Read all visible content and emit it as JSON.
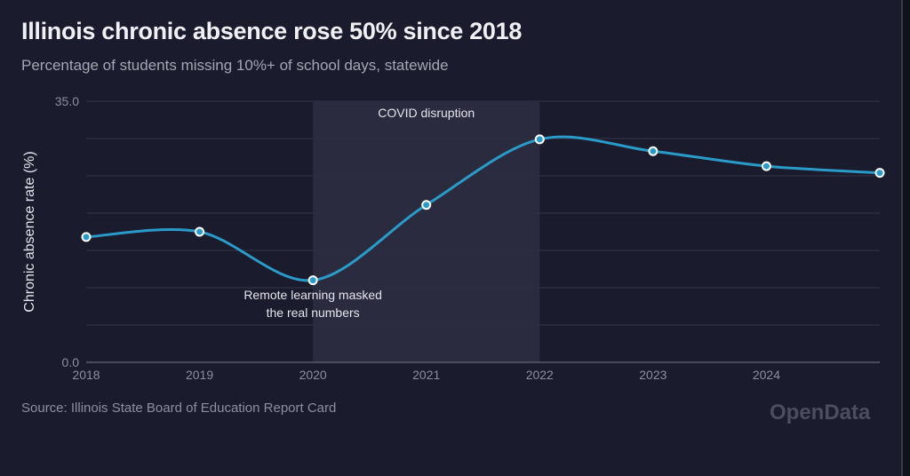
{
  "header": {
    "title": "Illinois chronic absence rose 50% since 2018",
    "subtitle": "Percentage of students missing 10%+ of school days, statewide"
  },
  "footer": {
    "source": "Source: Illinois State Board of Education Report Card",
    "brand": "OpenData"
  },
  "chart_data": {
    "type": "line",
    "x": [
      2018,
      2019,
      2020,
      2021,
      2022,
      2023,
      2024,
      2025
    ],
    "values": [
      16.8,
      17.5,
      11.0,
      21.1,
      29.9,
      28.3,
      26.3,
      25.4
    ],
    "xticks": [
      "2018",
      "2019",
      "2020",
      "2021",
      "2022",
      "2023",
      "2024"
    ],
    "yticks": [
      "0.0",
      "35.0"
    ],
    "ylabel": "Chronic absence rate (%)",
    "xlabel": "",
    "ylim": [
      0,
      35
    ],
    "xlim": [
      2018,
      2025
    ],
    "grid": true,
    "line_color": "#2a9bc8",
    "shaded_region": {
      "from": 2020,
      "to": 2022,
      "label": "COVID disruption"
    },
    "annotations": [
      {
        "x": 2020,
        "lines": [
          "Remote learning masked",
          "the real numbers"
        ]
      }
    ]
  }
}
